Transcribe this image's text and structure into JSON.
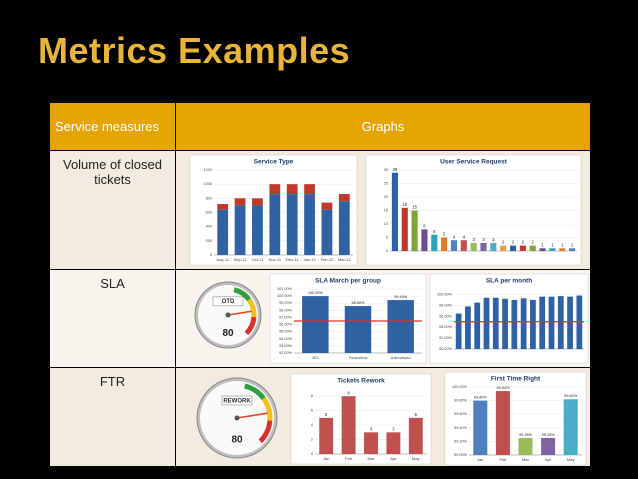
{
  "title": "Metrics Examples",
  "table": {
    "header": [
      "Service measures",
      "Graphs"
    ],
    "rows": [
      {
        "measure": "Volume of closed tickets",
        "charts": [
          {
            "type": "bar",
            "title": "Service Type",
            "stacked": true,
            "categories": [
              "Aug-11",
              "Sep-11",
              "Oct-11",
              "Nov-11",
              "Dec-11",
              "Jan-12",
              "Feb-12",
              "Mar-12"
            ],
            "series": [
              {
                "color": "#2e62a3",
                "values": [
                  640,
                  700,
                  700,
                  860,
                  860,
                  860,
                  640,
                  760
                ]
              },
              {
                "color": "#c0392b",
                "values": [
                  80,
                  100,
                  100,
                  140,
                  140,
                  140,
                  100,
                  100
                ]
              }
            ],
            "ylim": [
              0,
              1200
            ],
            "yticks": [
              0,
              200,
              400,
              600,
              800,
              1000,
              1200
            ]
          },
          {
            "type": "bar",
            "title": "User Service Request",
            "data_labels": true,
            "categories": [
              null,
              null,
              null,
              null,
              null,
              null,
              null,
              null,
              null,
              null,
              null,
              null,
              null,
              null,
              null,
              null,
              null,
              null,
              null
            ],
            "values": [
              29,
              16,
              15,
              8,
              6,
              5,
              4,
              4,
              3,
              3,
              3,
              2,
              2,
              2,
              2,
              1,
              1,
              1,
              1
            ],
            "colors": [
              "#2e62a3",
              "#c0392b",
              "#7fa33b",
              "#6a4c93",
              "#2aa3b8",
              "#e07b2a",
              "#4f81bd",
              "#c0504d",
              "#9bbb59",
              "#8064a2",
              "#4bacc6",
              "#f79646",
              "#2e62a3",
              "#c0392b",
              "#7fa33b",
              "#6a4c93",
              "#2aa3b8",
              "#e07b2a",
              "#4f81bd"
            ],
            "ylim": [
              0,
              30
            ],
            "yticks": [
              0,
              5,
              10,
              15,
              20,
              25,
              30
            ]
          }
        ]
      },
      {
        "measure": "SLA",
        "charts": [
          {
            "type": "gauge",
            "label": "OTD",
            "value": 80,
            "scale": [
              0,
              100
            ]
          },
          {
            "type": "bar",
            "title": "SLA March per group",
            "categories": [
              "BO",
              "Financiera",
              "Adecuaçao"
            ],
            "values": [
              100,
              98.6,
              99.44
            ],
            "value_labels": [
              "100.00%",
              "98.60%",
              "99.44%"
            ],
            "color": "#2e62a3",
            "baseline": 96.5,
            "ylim": [
              92,
              101
            ],
            "yticks": [
              {
                "value": 92,
                "label": "92.00%"
              },
              {
                "value": 93,
                "label": "93.00%"
              },
              {
                "value": 94,
                "label": "94.00%"
              },
              {
                "value": 95,
                "label": "95.00%"
              },
              {
                "value": 96,
                "label": "96.00%"
              },
              {
                "value": 97,
                "label": "97.00%"
              },
              {
                "value": 98,
                "label": "98.00%"
              },
              {
                "value": 99,
                "label": "99.00%"
              },
              {
                "value": 100,
                "label": "100.00%"
              },
              {
                "value": 101,
                "label": "101.00%"
              }
            ]
          },
          {
            "type": "bar",
            "title": "SLA per month",
            "categories": [
              null,
              null,
              null,
              null,
              null,
              null,
              null,
              null,
              null,
              null,
              null,
              null,
              null,
              null
            ],
            "values": [
              96.5,
              97.8,
              98.5,
              99.4,
              99.4,
              99.2,
              99.0,
              99.3,
              99.0,
              99.6,
              99.6,
              99.7,
              99.6,
              99.8
            ],
            "color": "#2e62a3",
            "baseline": 95,
            "ylim": [
              90,
              101
            ],
            "yticks": [
              {
                "value": 90,
                "label": "90.00%"
              },
              {
                "value": 92,
                "label": "92.00%"
              },
              {
                "value": 94,
                "label": "94.00%"
              },
              {
                "value": 96,
                "label": "96.00%"
              },
              {
                "value": 98,
                "label": "98.00%"
              },
              {
                "value": 100,
                "label": "100.00%"
              }
            ]
          }
        ]
      },
      {
        "measure": "FTR",
        "charts": [
          {
            "type": "gauge",
            "label": "REWORK",
            "value": 80,
            "scale": [
              0,
              100
            ]
          },
          {
            "type": "bar",
            "title": "Tickets Rework",
            "data_labels": true,
            "categories": [
              "Jan",
              "Feb",
              "Mar",
              "Apr",
              "May"
            ],
            "values": [
              5,
              8,
              3,
              3,
              5
            ],
            "color": "#c0504d",
            "ylim": [
              0,
              9
            ],
            "yticks": [
              0,
              2,
              4,
              6,
              8
            ]
          },
          {
            "type": "bar",
            "title": "First Time Right",
            "categories": [
              "Jan",
              "Feb",
              "Mar",
              "Apr",
              "May"
            ],
            "values": [
              99.8,
              99.94,
              99.25,
              99.25,
              99.82
            ],
            "value_labels": [
              "99.80%",
              "99.94%",
              "99.25%",
              "99.25%",
              "99.82%"
            ],
            "colors": [
              "#4f81bd",
              "#c0504d",
              "#9bbb59",
              "#8064a2",
              "#4bacc6"
            ],
            "ylim": [
              99,
              100
            ],
            "yticks": [
              {
                "value": 99,
                "label": "99.00%"
              },
              {
                "value": 99.2,
                "label": "99.20%"
              },
              {
                "value": 99.4,
                "label": "99.40%"
              },
              {
                "value": 99.6,
                "label": "99.60%"
              },
              {
                "value": 99.8,
                "label": "99.80%"
              },
              {
                "value": 100,
                "label": "100.00%"
              }
            ]
          }
        ]
      }
    ]
  }
}
